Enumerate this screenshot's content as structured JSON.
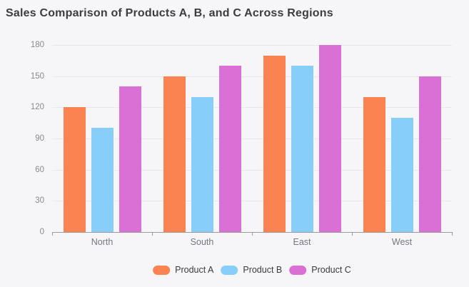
{
  "title": "Sales Comparison of Products A, B, and C Across Regions",
  "chart_data": {
    "type": "bar",
    "categories": [
      "North",
      "South",
      "East",
      "West"
    ],
    "series": [
      {
        "name": "Product A",
        "color": "#FB8351",
        "values": [
          120,
          150,
          170,
          130
        ]
      },
      {
        "name": "Product B",
        "color": "#87CEFA",
        "values": [
          100,
          130,
          160,
          110
        ]
      },
      {
        "name": "Product C",
        "color": "#DA70D6",
        "values": [
          140,
          160,
          180,
          150
        ]
      }
    ],
    "xlabel": "",
    "ylabel": "",
    "ylim": [
      0,
      180
    ],
    "yticks": [
      0,
      30,
      60,
      90,
      120,
      150,
      180
    ],
    "grid": true,
    "legend_position": "bottom"
  },
  "style": {
    "background": "#F6F6F8",
    "title_color": "#3D3D3D",
    "y_label_color": "#8A8A8A",
    "x_label_color": "#76767E",
    "legend_text_color": "#3A3A3A",
    "gridline_color": "#E7E7EF",
    "axis_line_color": "#9A9A9A"
  }
}
